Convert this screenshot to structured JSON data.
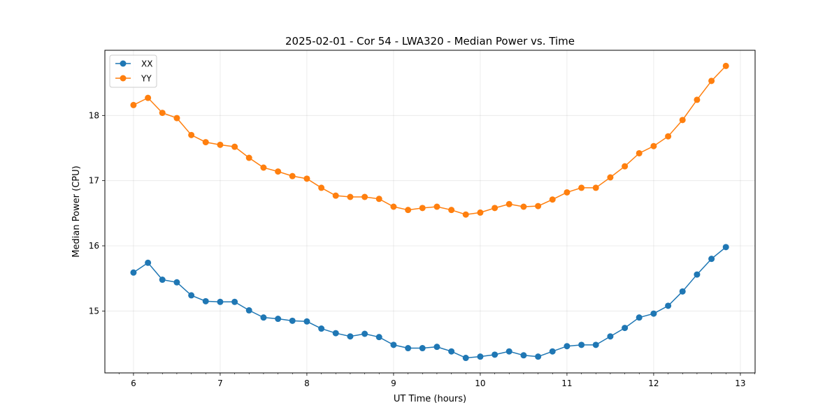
{
  "chart_data": {
    "type": "line",
    "title": "2025-02-01 - Cor 54 - LWA320 - Median Power vs. Time",
    "xlabel": "UT Time (hours)",
    "ylabel": "Median Power (CPU)",
    "xlim": [
      5.67,
      13.17
    ],
    "ylim": [
      14.05,
      19.0
    ],
    "xticks": [
      6,
      7,
      8,
      9,
      10,
      11,
      12,
      13
    ],
    "xtick_labels": [
      "6",
      "7",
      "8",
      "9",
      "10",
      "11",
      "12",
      "13"
    ],
    "yticks": [
      15,
      16,
      17,
      18
    ],
    "ytick_labels": [
      "15",
      "16",
      "17",
      "18"
    ],
    "grid": true,
    "legend_position": "top-left",
    "x": [
      6.0,
      6.167,
      6.333,
      6.5,
      6.667,
      6.833,
      7.0,
      7.167,
      7.333,
      7.5,
      7.667,
      7.833,
      8.0,
      8.167,
      8.333,
      8.5,
      8.667,
      8.833,
      9.0,
      9.167,
      9.333,
      9.5,
      9.667,
      9.833,
      10.0,
      10.167,
      10.333,
      10.5,
      10.667,
      10.833,
      11.0,
      11.167,
      11.333,
      11.5,
      11.667,
      11.833,
      12.0,
      12.167,
      12.333,
      12.5,
      12.667,
      12.833
    ],
    "series": [
      {
        "name": "XX",
        "color": "#1f77b4",
        "values": [
          15.59,
          15.74,
          15.48,
          15.44,
          15.24,
          15.15,
          15.14,
          15.14,
          15.01,
          14.9,
          14.88,
          14.85,
          14.84,
          14.73,
          14.66,
          14.61,
          14.65,
          14.6,
          14.48,
          14.43,
          14.43,
          14.45,
          14.38,
          14.28,
          14.3,
          14.33,
          14.38,
          14.32,
          14.3,
          14.38,
          14.46,
          14.48,
          14.48,
          14.61,
          14.74,
          14.9,
          14.96,
          15.08,
          15.3,
          15.56,
          15.8,
          15.98
        ]
      },
      {
        "name": "YY",
        "color": "#ff7f0e",
        "values": [
          18.16,
          18.27,
          18.04,
          17.96,
          17.7,
          17.59,
          17.55,
          17.52,
          17.35,
          17.2,
          17.14,
          17.07,
          17.03,
          16.89,
          16.77,
          16.75,
          16.75,
          16.72,
          16.6,
          16.55,
          16.58,
          16.6,
          16.55,
          16.48,
          16.51,
          16.58,
          16.64,
          16.6,
          16.61,
          16.71,
          16.82,
          16.89,
          16.89,
          17.05,
          17.22,
          17.42,
          17.53,
          17.68,
          17.93,
          18.24,
          18.53,
          18.76
        ]
      }
    ]
  }
}
